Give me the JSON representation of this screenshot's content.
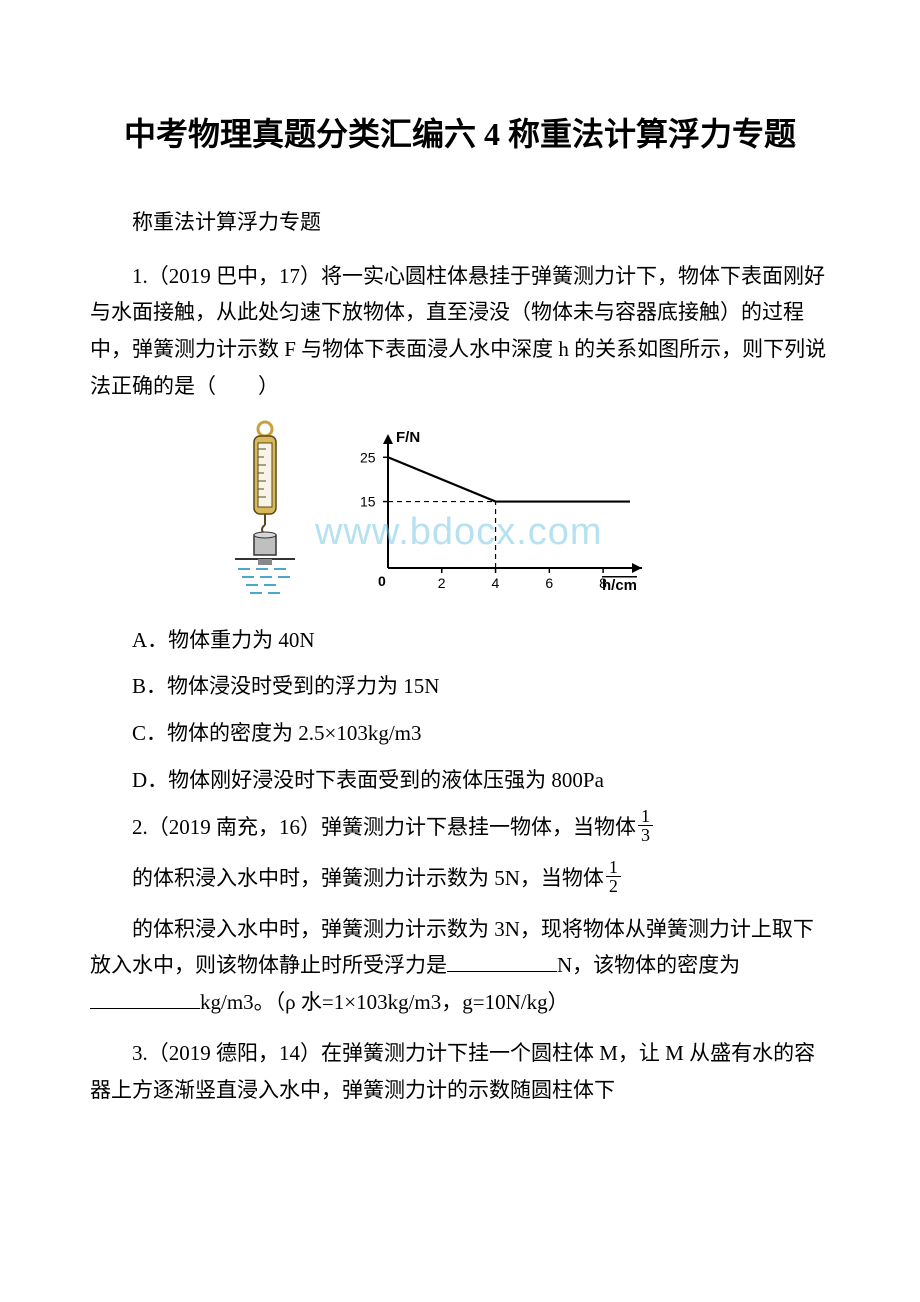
{
  "title": "中考物理真题分类汇编六 4 称重法计算浮力专题",
  "section_label": "称重法计算浮力专题",
  "q1": {
    "stem": "1.（2019 巴中，17）将一实心圆柱体悬挂于弹簧测力计下，物体下表面刚好与水面接触，从此处匀速下放物体，直至浸没（物体未与容器底接触）的过程中，弹簧测力计示数 F 与物体下表面浸人水中深度 h 的关系如图所示，则下列说法正确的是（　　）",
    "options": {
      "A": "A．物体重力为 40N",
      "B": "B．物体浸没时受到的浮力为 15N",
      "C": "C．物体的密度为 2.5×103kg/m3",
      "D": "D．物体刚好浸没时下表面受到的液体压强为 800Pa"
    }
  },
  "q2": {
    "part1_prefix": "2.（2019 南充，16）弹簧测力计下悬挂一物体，当物体",
    "frac1": {
      "num": "1",
      "den": "3"
    },
    "part2_prefix": "的体积浸入水中时，弹簧测力计示数为 5N，当物体",
    "frac2": {
      "num": "1",
      "den": "2"
    },
    "part3": "的体积浸入水中时，弹簧测力计示数为 3N，现将物体从弹簧测力计上取下放入水中，则该物体静止时所受浮力是",
    "part3_mid": "N，该物体的密度为",
    "part3_end": "kg/m3。（ρ 水=1×103kg/m3，g=10N/kg）"
  },
  "q3": {
    "stem": "3.（2019 德阳，14）在弹簧测力计下挂一个圆柱体 M，让 M 从盛有水的容器上方逐渐竖直浸入水中，弹簧测力计的示数随圆柱体下"
  },
  "watermark": "www.bdocx.com",
  "chart": {
    "type": "line",
    "y_axis_label": "F/N",
    "x_axis_label": "h/cm",
    "x_ticks": [
      "2",
      "4",
      "6",
      "8"
    ],
    "y_ticks": [
      "15",
      "25"
    ],
    "xlim": [
      0,
      9
    ],
    "ylim": [
      0,
      28
    ],
    "points": [
      [
        0,
        25
      ],
      [
        4,
        15
      ],
      [
        9,
        15
      ]
    ],
    "line_color": "#000000",
    "axis_color": "#000000",
    "dash_color": "#000000",
    "background": "#ffffff",
    "font_size": 14,
    "dash_segments": [
      {
        "from": [
          0,
          15
        ],
        "to": [
          4,
          15
        ]
      },
      {
        "from": [
          4,
          0
        ],
        "to": [
          4,
          15
        ]
      }
    ]
  },
  "spring_diagram": {
    "ring_color": "#c9a13a",
    "body_color": "#d9b85a",
    "body_highlight": "#f2dd96",
    "outline": "#5a4a1a",
    "plate_color": "#888888",
    "water_color": "#78c8e6",
    "wave_color": "#4aa8cc",
    "beaker_outline": "#333333"
  }
}
